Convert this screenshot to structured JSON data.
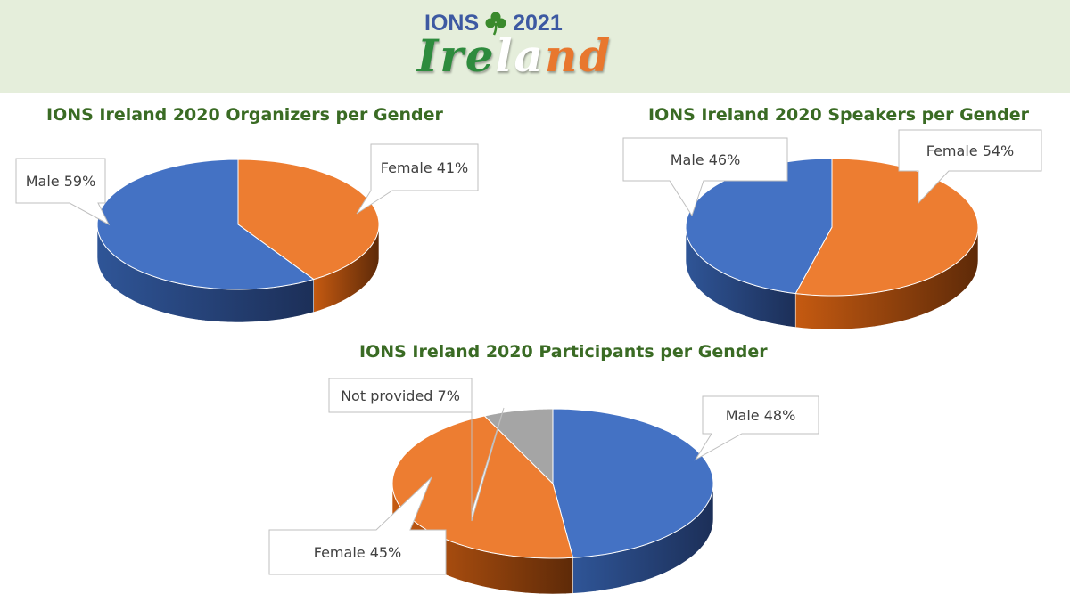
{
  "logo": {
    "line1_left": "IONS",
    "shamrock_icon": "shamrock-icon",
    "line1_right": "2021",
    "line2": [
      {
        "text": "Ire",
        "color": "#2e8b3d"
      },
      {
        "text": "la",
        "color": "#ffffff"
      },
      {
        "text": "nd",
        "color": "#e8772e"
      }
    ],
    "colors": {
      "line1": "#3d59a2",
      "header_bg": "#e5eedb",
      "shamrock": "#3a8a2c"
    }
  },
  "colors": {
    "male": "#4472c4",
    "female": "#ed7d31",
    "not_provided": "#a5a5a5",
    "title": "#3a6b24"
  },
  "chart_data": [
    {
      "type": "pie",
      "style": "3d",
      "title": "IONS Ireland 2020 Organizers per Gender",
      "slices": [
        {
          "key": "male",
          "label": "Male",
          "value": 59,
          "display": "Male 59%"
        },
        {
          "key": "female",
          "label": "Female",
          "value": 41,
          "display": "Female 41%"
        }
      ]
    },
    {
      "type": "pie",
      "style": "3d",
      "title": "IONS Ireland 2020 Speakers per Gender",
      "slices": [
        {
          "key": "male",
          "label": "Male",
          "value": 46,
          "display": "Male 46%"
        },
        {
          "key": "female",
          "label": "Female",
          "value": 54,
          "display": "Female 54%"
        }
      ]
    },
    {
      "type": "pie",
      "style": "3d",
      "title": "IONS Ireland 2020 Participants per Gender",
      "slices": [
        {
          "key": "male",
          "label": "Male",
          "value": 48,
          "display": "Male 48%"
        },
        {
          "key": "female",
          "label": "Female",
          "value": 45,
          "display": "Female 45%"
        },
        {
          "key": "not_provided",
          "label": "Not provided",
          "value": 7,
          "display": "Not provided 7%"
        }
      ]
    }
  ]
}
